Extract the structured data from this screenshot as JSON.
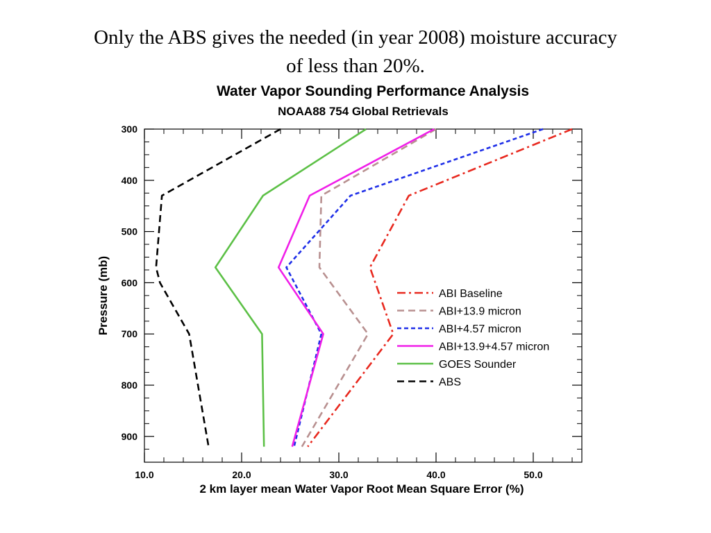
{
  "slide": {
    "title_line1": "Only the ABS gives the needed (in year 2008) moisture accuracy",
    "title_line2": "of less than 20%."
  },
  "chart_data": {
    "type": "line",
    "title": "Water Vapor Sounding Performance Analysis",
    "subtitle": "NOAA88 754 Global Retrievals",
    "xlabel": "2 km layer mean Water Vapor Root Mean Square Error (%)",
    "ylabel": "Pressure (mb)",
    "xlim": [
      10,
      55
    ],
    "ylim": [
      950,
      300
    ],
    "y_inverted": true,
    "x_ticks": [
      10,
      20,
      30,
      40,
      50
    ],
    "x_tick_labels": [
      "10.0",
      "20.0",
      "30.0",
      "40.0",
      "50.0"
    ],
    "y_ticks": [
      300,
      400,
      500,
      600,
      700,
      800,
      900
    ],
    "y_tick_labels": [
      "300",
      "400",
      "500",
      "600",
      "700",
      "800",
      "900"
    ],
    "grid": false,
    "legend_position": "right-middle",
    "series": [
      {
        "name": "ABI Baseline",
        "color": "#e8281e",
        "dash": "dashdot",
        "points": [
          [
            54.0,
            300
          ],
          [
            37.2,
            430
          ],
          [
            33.2,
            570
          ],
          [
            35.6,
            700
          ],
          [
            26.8,
            920
          ]
        ]
      },
      {
        "name": "ABI+13.9 micron",
        "color": "#b89090",
        "dash": "longdash",
        "points": [
          [
            40.0,
            300
          ],
          [
            28.2,
            430
          ],
          [
            28.0,
            570
          ],
          [
            33.0,
            700
          ],
          [
            26.2,
            920
          ]
        ]
      },
      {
        "name": "ABI+4.57 micron",
        "color": "#1e2ee8",
        "dash": "dash",
        "points": [
          [
            51.0,
            300
          ],
          [
            31.2,
            430
          ],
          [
            24.6,
            570
          ],
          [
            28.2,
            700
          ],
          [
            25.4,
            920
          ]
        ]
      },
      {
        "name": "ABI+13.9+4.57 micron",
        "color": "#f01ee8",
        "dash": "solid",
        "points": [
          [
            39.8,
            300
          ],
          [
            27.0,
            430
          ],
          [
            23.8,
            570
          ],
          [
            28.4,
            700
          ],
          [
            25.2,
            920
          ]
        ]
      },
      {
        "name": "GOES Sounder",
        "color": "#5cc046",
        "dash": "solid",
        "points": [
          [
            32.8,
            300
          ],
          [
            22.2,
            430
          ],
          [
            17.3,
            570
          ],
          [
            22.1,
            700
          ],
          [
            22.3,
            920
          ]
        ]
      },
      {
        "name": "ABS",
        "color": "#000000",
        "dash": "longdash",
        "points": [
          [
            24.0,
            300
          ],
          [
            11.8,
            430
          ],
          [
            11.2,
            570
          ],
          [
            11.6,
            600
          ],
          [
            14.6,
            700
          ],
          [
            16.6,
            920
          ]
        ]
      }
    ]
  }
}
